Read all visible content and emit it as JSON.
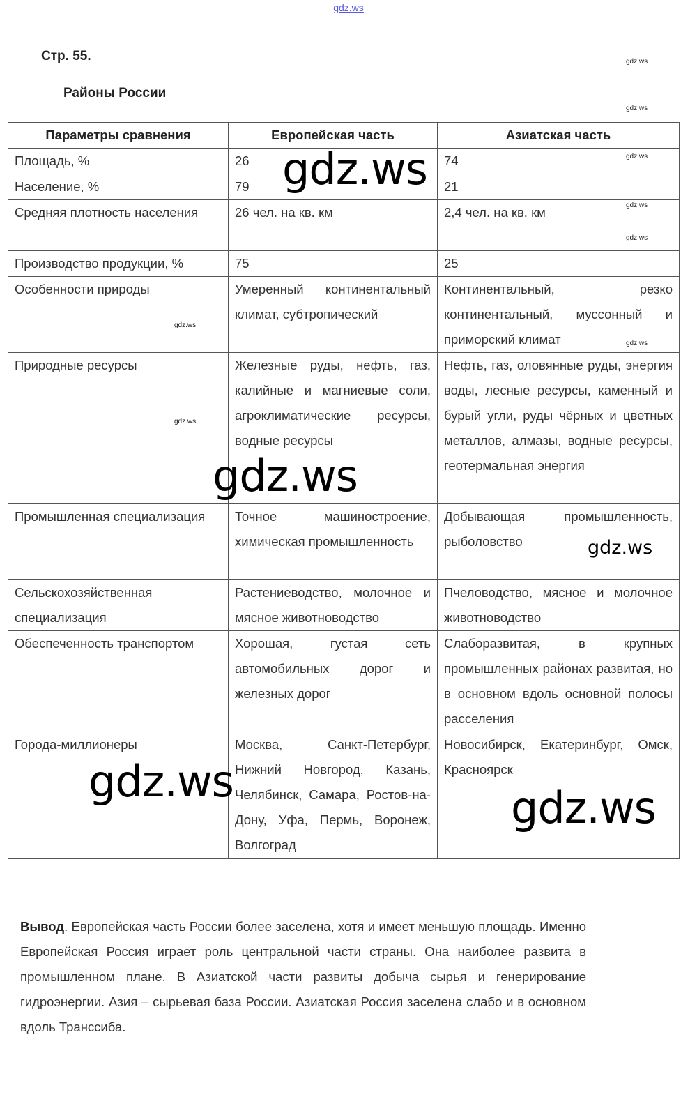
{
  "page_number": "Стр. 55.",
  "title": "Районы России",
  "table": {
    "headers": [
      "Параметры сравнения",
      "Европейская часть",
      "Азиатская часть"
    ],
    "rows": [
      [
        "Площадь, %",
        "26",
        "74"
      ],
      [
        "Население, %",
        "79",
        "21"
      ],
      [
        "Средняя плотность населения",
        "26 чел. на кв. км",
        "2,4 чел. на кв. км"
      ],
      [
        "Производство продукции, %",
        "75",
        "25"
      ],
      [
        "Особенности природы",
        "Умеренный континентальный климат, субтропический",
        "Континентальный, резко континентальный, муссонный и приморский климат"
      ],
      [
        "Природные ресурсы",
        "Железные руды, нефть, газ, калийные и магниевые соли, агроклиматические ресурсы, водные ресурсы",
        "Нефть, газ, оловянные руды, энергия воды, лесные ресурсы, каменный и бурый угли, руды чёрных и цветных металлов, алмазы, водные ресурсы, геотермальная энергия"
      ],
      [
        "Промышленная специализация",
        "Точное машиностроение, химическая промышленность",
        "Добывающая промышленность, рыболовство"
      ],
      [
        "Сельскохозяйственная специализация",
        "Растениеводство, молочное и мясное животноводство",
        "Пчеловодство, мясное и молочное животноводство"
      ],
      [
        "Обеспеченность транспортом",
        "Хорошая, густая сеть автомобильных дорог и железных дорог",
        "Слаборазвитая, в крупных промышленных районах развитая, но в основном вдоль основной полосы расселения"
      ],
      [
        "Города-миллионеры",
        "Москва, Санкт-Петербург, Нижний Новгород, Казань, Челябинск, Самара, Ростов-на-Дону, Уфа, Пермь, Воронеж, Волгоград",
        "Новосибирск, Екатеринбург, Омск, Красноярск"
      ]
    ]
  },
  "conclusion": {
    "label": "Вывод",
    "text": ". Европейская часть России более заселена, хотя и имеет меньшую площадь. Именно Европейская Россия играет роль центральной части страны. Она наиболее развита в промышленном плане. В Азиатской части развиты добыча сырья и генерирование гидроэнергии. Азия – сырьевая база России. Азиатская Россия заселена слабо и в основном вдоль Транссиба."
  },
  "watermark": "gdz.ws",
  "colors": {
    "link": "#5a5ae0",
    "border": "#555555"
  }
}
